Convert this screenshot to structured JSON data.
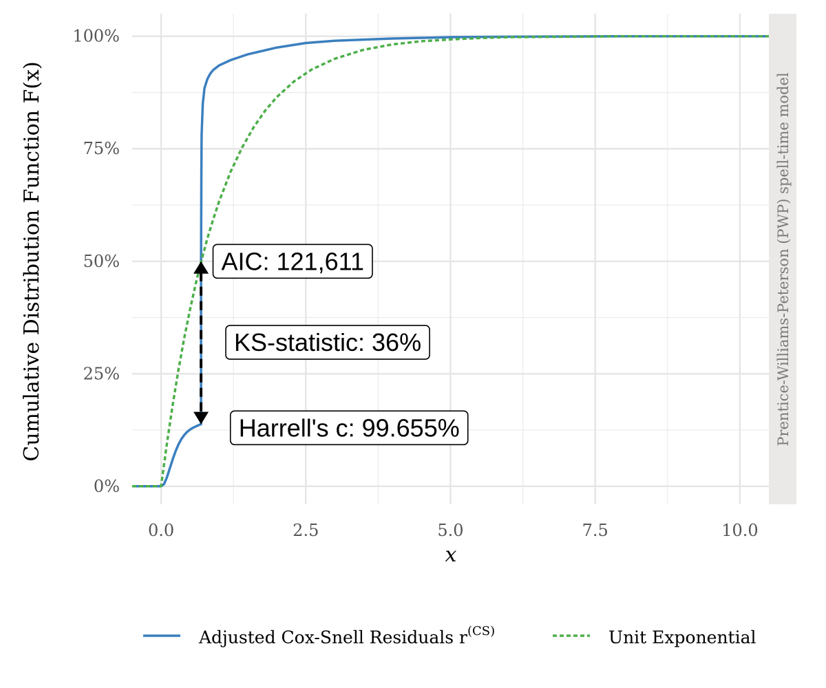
{
  "chart_data": {
    "type": "line",
    "xlabel": "x",
    "ylabel": "Cumulative Distribution Function F(x)",
    "strip_label": "Prentice-Williams-Peterson (PWP) spell-time model",
    "xlim": [
      -0.5,
      10.5
    ],
    "ylim": [
      -0.04,
      1.05
    ],
    "x_ticks": [
      0,
      2.5,
      5,
      7.5,
      10
    ],
    "x_tick_labels": [
      "0.0",
      "2.5",
      "5.0",
      "7.5",
      "10.0"
    ],
    "y_ticks": [
      0,
      0.25,
      0.5,
      0.75,
      1
    ],
    "y_tick_labels": [
      "0%",
      "25%",
      "50%",
      "75%",
      "100%"
    ],
    "grid": true,
    "legend_position": "bottom",
    "series": [
      {
        "name": "Adjusted Cox-Snell Residuals r^(CS)",
        "legend_label": "Adjusted Cox-Snell Residuals r",
        "legend_superscript": "(CS)",
        "style": "solid",
        "color": "#3a7fbf",
        "x": [
          -0.5,
          0,
          0.05,
          0.1,
          0.15,
          0.2,
          0.25,
          0.3,
          0.35,
          0.4,
          0.45,
          0.5,
          0.55,
          0.6,
          0.65,
          0.69,
          0.69,
          0.695,
          0.7,
          0.72,
          0.75,
          0.8,
          0.85,
          0.9,
          1.0,
          1.2,
          1.5,
          2.0,
          2.5,
          3.0,
          4.0,
          5.0,
          6.0,
          8.0,
          10.5
        ],
        "y": [
          0,
          0,
          0.005,
          0.02,
          0.04,
          0.06,
          0.078,
          0.093,
          0.105,
          0.114,
          0.121,
          0.126,
          0.13,
          0.133,
          0.136,
          0.138,
          0.5,
          0.68,
          0.78,
          0.85,
          0.885,
          0.905,
          0.917,
          0.925,
          0.935,
          0.947,
          0.96,
          0.975,
          0.985,
          0.99,
          0.995,
          0.998,
          0.999,
          1.0,
          1.0
        ]
      },
      {
        "name": "Unit Exponential",
        "style": "dashed",
        "color": "#4daf4a",
        "x": [
          -0.5,
          0,
          0.1,
          0.2,
          0.3,
          0.4,
          0.5,
          0.6,
          0.7,
          0.8,
          0.9,
          1.0,
          1.2,
          1.4,
          1.6,
          1.8,
          2.0,
          2.3,
          2.6,
          3.0,
          3.5,
          4.0,
          4.5,
          5.0,
          5.5,
          6.0,
          7.0,
          8.0,
          9.0,
          10.5
        ],
        "y": [
          0,
          0,
          0.095,
          0.181,
          0.259,
          0.33,
          0.393,
          0.451,
          0.503,
          0.551,
          0.593,
          0.632,
          0.699,
          0.753,
          0.798,
          0.835,
          0.865,
          0.9,
          0.926,
          0.95,
          0.97,
          0.982,
          0.989,
          0.993,
          0.996,
          0.998,
          0.999,
          1.0,
          1.0,
          1.0
        ]
      }
    ],
    "ks_arrow": {
      "x": 0.69,
      "y_from": 0.138,
      "y_to": 0.5
    },
    "annotations": [
      {
        "key": "aic",
        "text": "AIC: 121,611",
        "x": 1.04,
        "y": 0.5
      },
      {
        "key": "ks",
        "text": "KS-statistic: 36%",
        "x": 1.26,
        "y": 0.32
      },
      {
        "key": "c",
        "text": "Harrell's c: 99.655%",
        "x": 1.34,
        "y": 0.13
      }
    ]
  }
}
